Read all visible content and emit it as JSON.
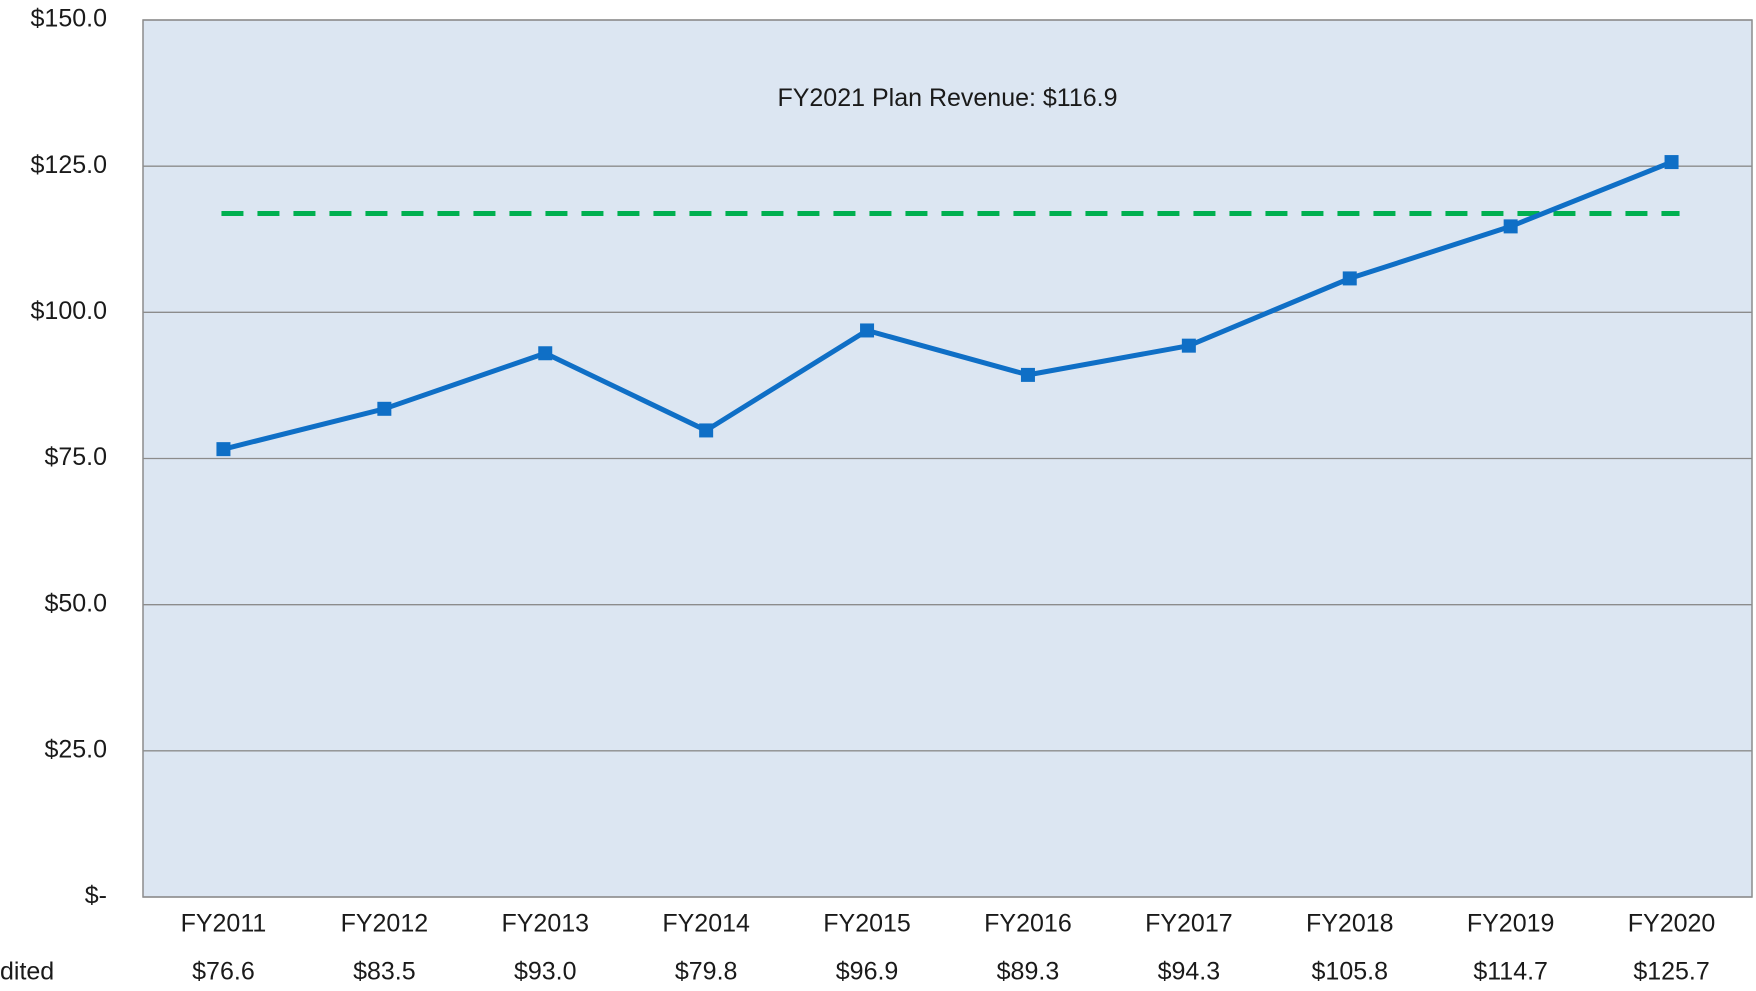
{
  "chart_data": {
    "type": "line",
    "categories": [
      "FY2011",
      "FY2012",
      "FY2013",
      "FY2014",
      "FY2015",
      "FY2016",
      "FY2017",
      "FY2018",
      "FY2019",
      "FY2020"
    ],
    "series": [
      {
        "name": "dited",
        "color": "#0f6fc6",
        "values": [
          76.6,
          83.5,
          93.0,
          79.8,
          96.9,
          89.3,
          94.3,
          105.8,
          114.7,
          125.7
        ],
        "value_labels": [
          "$76.6",
          "$83.5",
          "$93.0",
          "$79.8",
          "$96.9",
          "$89.3",
          "$94.3",
          "$105.8",
          "$114.7",
          "$125.7"
        ]
      }
    ],
    "reference_line": {
      "value": 116.9,
      "color": "#00b050",
      "label": "FY2021 Plan Revenue: $116.9"
    },
    "ylim": [
      0,
      150
    ],
    "yticks": [
      {
        "value": 0,
        "label": "$-"
      },
      {
        "value": 25,
        "label": "$25.0"
      },
      {
        "value": 50,
        "label": "$50.0"
      },
      {
        "value": 75,
        "label": "$75.0"
      },
      {
        "value": 100,
        "label": "$100.0"
      },
      {
        "value": 125,
        "label": "$125.0"
      },
      {
        "value": 150,
        "label": "$150.0"
      }
    ],
    "grid": true
  }
}
